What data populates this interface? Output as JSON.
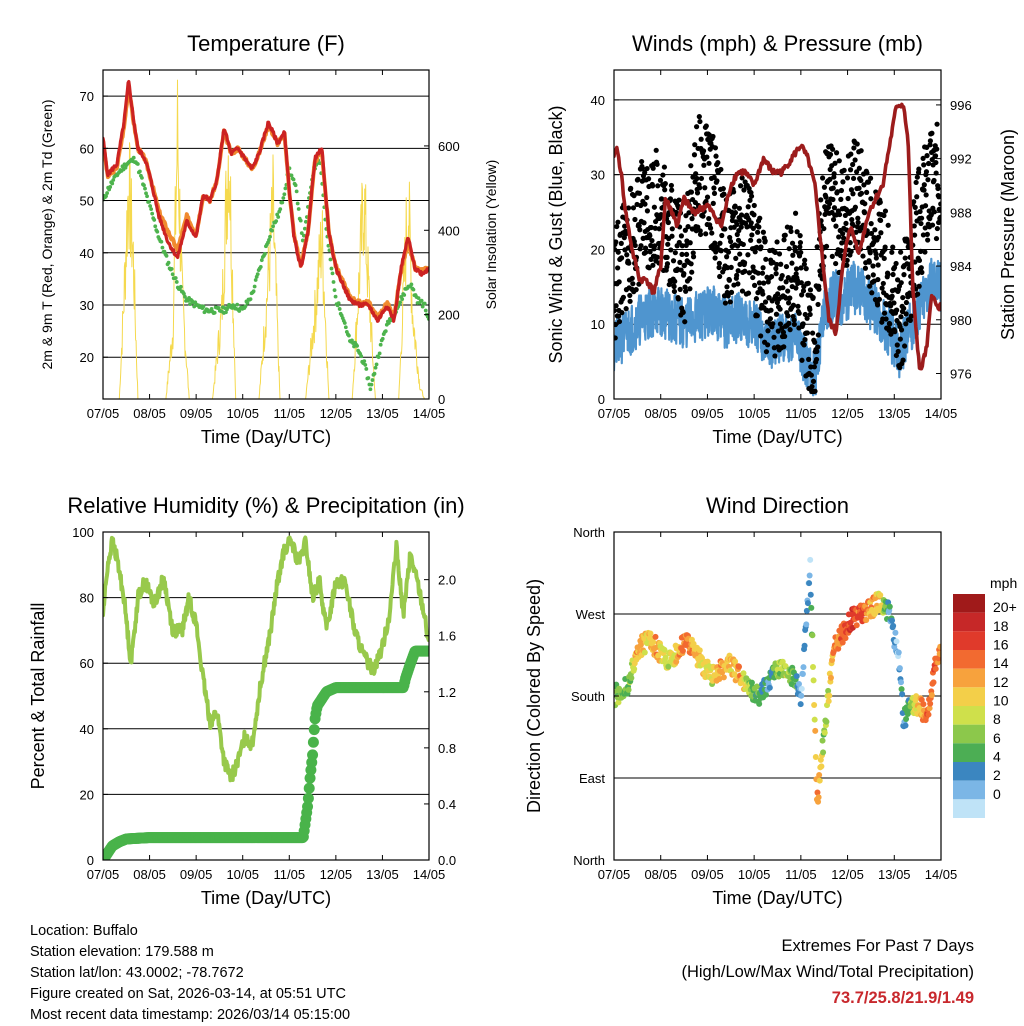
{
  "colors": {
    "temp_2m": "#cc2222",
    "temp_9m": "#f08a2e",
    "dewpoint": "#4db34d",
    "solar": "#f5d94e",
    "wind": "#4f95cf",
    "gust": "#000000",
    "pressure": "#9c1c1c",
    "rh": "#98c94c",
    "precip": "#49b34a",
    "extremes": "#c8282d"
  },
  "x_ticks": [
    "07/05",
    "08/05",
    "09/05",
    "10/05",
    "11/05",
    "12/05",
    "13/05",
    "14/05"
  ],
  "x_label": "Time (Day/UTC)",
  "chart_data": [
    {
      "id": "temperature",
      "type": "line",
      "title": "Temperature (F)",
      "xlabel": "Time (Day/UTC)",
      "ylabel": "2m & 9m T (Red, Orange) & 2m Td (Green)",
      "y2label": "Solar Insolation (Yellow)",
      "ylim": [
        12,
        75
      ],
      "y2lim": [
        0,
        780
      ],
      "yticks": [
        20,
        30,
        40,
        50,
        60,
        70
      ],
      "y2ticks": [
        0,
        200,
        400,
        600
      ],
      "series": [
        {
          "name": "2m T",
          "axis": "left",
          "x": [
            0,
            0.1,
            0.3,
            0.45,
            0.55,
            0.65,
            0.75,
            0.9,
            1.0,
            1.2,
            1.4,
            1.6,
            1.8,
            2.0,
            2.15,
            2.3,
            2.45,
            2.6,
            2.75,
            2.9,
            3.05,
            3.2,
            3.35,
            3.55,
            3.75,
            3.9,
            4.0,
            4.1,
            4.25,
            4.4,
            4.55,
            4.7,
            4.85,
            5.0,
            5.15,
            5.3,
            5.5,
            5.7,
            5.9,
            6.1,
            6.25,
            6.4,
            6.55,
            6.7,
            6.85,
            7.0
          ],
          "values": [
            62,
            55,
            57,
            65,
            73,
            66,
            60,
            58,
            55,
            47,
            42,
            39,
            46,
            43,
            51,
            50,
            54,
            64,
            59,
            60,
            58,
            56,
            59,
            65,
            61,
            63,
            52,
            43,
            37,
            44,
            58,
            60,
            44,
            37,
            34,
            31,
            30,
            30,
            27,
            30,
            27,
            37,
            43,
            37,
            36,
            37
          ]
        },
        {
          "name": "9m T",
          "axis": "left",
          "x": [
            0,
            0.1,
            0.3,
            0.45,
            0.55,
            0.65,
            0.75,
            0.9,
            1.0,
            1.2,
            1.4,
            1.6,
            1.8,
            2.0,
            2.15,
            2.3,
            2.45,
            2.6,
            2.75,
            2.9,
            3.05,
            3.2,
            3.35,
            3.55,
            3.75,
            3.9,
            4.0,
            4.1,
            4.25,
            4.4,
            4.55,
            4.7,
            4.85,
            5.0,
            5.15,
            5.3,
            5.5,
            5.7,
            5.9,
            6.1,
            6.25,
            6.4,
            6.55,
            6.7,
            6.85,
            7.0
          ],
          "values": [
            61.5,
            54.5,
            56.5,
            64,
            72,
            65.5,
            60,
            58,
            55,
            48,
            44,
            40.5,
            47,
            43.5,
            51,
            50,
            54,
            63.5,
            59,
            60,
            58,
            56,
            59,
            64.5,
            61,
            62.5,
            52,
            43.5,
            37.5,
            44,
            57.5,
            59.5,
            44,
            37.5,
            34.5,
            31.5,
            30.5,
            30.5,
            27.5,
            30.5,
            27.5,
            36.5,
            42,
            37,
            36.5,
            37
          ]
        },
        {
          "name": "2m Td",
          "axis": "left",
          "x": [
            0,
            0.1,
            0.3,
            0.5,
            0.7,
            0.9,
            1.0,
            1.2,
            1.4,
            1.6,
            1.8,
            2.0,
            2.2,
            2.4,
            2.6,
            2.8,
            3.0,
            3.2,
            3.4,
            3.6,
            3.8,
            4.0,
            4.15,
            4.3,
            4.5,
            4.65,
            4.8,
            5.0,
            5.15,
            5.3,
            5.45,
            5.6,
            5.75,
            5.9,
            6.05,
            6.2,
            6.35,
            6.5,
            6.6,
            6.75,
            6.9,
            7.0
          ],
          "values": [
            50,
            52,
            55,
            57,
            58,
            52,
            49,
            43,
            38,
            34,
            31,
            30,
            29,
            29,
            29,
            30,
            29,
            32,
            38,
            44,
            48,
            56,
            52,
            42,
            55,
            59,
            44,
            31,
            28,
            23,
            22,
            19,
            14,
            20,
            25,
            28,
            30,
            33,
            34,
            31,
            30,
            27
          ]
        },
        {
          "name": "Solar Insolation",
          "axis": "right",
          "x": [
            0,
            0.35,
            0.45,
            0.55,
            0.65,
            0.75,
            1.35,
            1.5,
            1.6,
            1.7,
            1.85,
            2.35,
            2.55,
            2.7,
            2.85,
            3.35,
            3.5,
            3.65,
            3.8,
            4.35,
            4.55,
            4.7,
            4.85,
            5.35,
            5.5,
            5.6,
            5.7,
            5.85,
            6.35,
            6.55,
            6.65,
            6.8,
            6.9,
            7.0
          ],
          "values": [
            0,
            0,
            300,
            640,
            420,
            0,
            0,
            200,
            780,
            300,
            0,
            0,
            250,
            760,
            0,
            0,
            260,
            560,
            0,
            0,
            250,
            480,
            0,
            0,
            350,
            600,
            330,
            0,
            0,
            600,
            250,
            40,
            0,
            0
          ]
        }
      ]
    },
    {
      "id": "winds",
      "type": "scatter",
      "title": "Winds (mph) & Pressure (mb)",
      "xlabel": "Time (Day/UTC)",
      "ylabel": "Sonic Wind & Gust (Blue, Black)",
      "y2label": "Station Pressure (Maroon)",
      "ylim": [
        0,
        44
      ],
      "y2lim": [
        974.1,
        998.6
      ],
      "yticks": [
        0,
        10,
        20,
        30,
        40
      ],
      "y2ticks": [
        976,
        980,
        984,
        988,
        992,
        996
      ],
      "series": [
        {
          "name": "Sonic Wind",
          "axis": "left",
          "x": [
            0,
            0.3,
            0.6,
            0.9,
            1.2,
            1.5,
            1.8,
            2.1,
            2.4,
            2.7,
            3.0,
            3.3,
            3.6,
            3.9,
            4.1,
            4.3,
            4.5,
            4.7,
            4.9,
            5.1,
            5.3,
            5.6,
            5.9,
            6.1,
            6.3,
            6.6,
            6.8,
            7.0
          ],
          "values": [
            7,
            9,
            11,
            12,
            11,
            10,
            11,
            12,
            10,
            11,
            10,
            7,
            8,
            9,
            5,
            3,
            12,
            14,
            13,
            15,
            14,
            12,
            9,
            6,
            9,
            13,
            16,
            15
          ]
        },
        {
          "name": "Gust",
          "axis": "left",
          "x": [
            0,
            0.3,
            0.6,
            0.9,
            1.2,
            1.5,
            1.8,
            2.1,
            2.4,
            2.7,
            3.0,
            3.3,
            3.6,
            3.9,
            4.1,
            4.3,
            4.5,
            4.7,
            4.9,
            5.1,
            5.3,
            5.6,
            5.9,
            6.1,
            6.3,
            6.6,
            6.8,
            7.0
          ],
          "values": [
            15,
            20,
            24,
            26,
            23,
            17,
            30,
            28,
            20,
            22,
            20,
            12,
            14,
            18,
            10,
            8,
            27,
            26,
            24,
            28,
            26,
            20,
            16,
            11,
            16,
            25,
            28,
            30
          ]
        },
        {
          "name": "Station Pressure",
          "axis": "right",
          "x": [
            0,
            0.05,
            0.15,
            0.25,
            0.4,
            0.55,
            0.7,
            0.85,
            1.0,
            1.1,
            1.25,
            1.35,
            1.5,
            1.7,
            2.0,
            2.3,
            2.5,
            2.65,
            2.8,
            3.0,
            3.2,
            3.4,
            3.6,
            3.8,
            4.0,
            4.15,
            4.3,
            4.45,
            4.6,
            4.75,
            4.9,
            5.05,
            5.25,
            5.45,
            5.6,
            5.75,
            5.9,
            6.05,
            6.2,
            6.3,
            6.4,
            6.55,
            6.7,
            6.8,
            6.9,
            7.0
          ],
          "values": [
            992,
            993,
            991,
            988,
            985,
            983,
            983,
            982,
            984,
            989,
            988,
            987,
            989,
            988,
            988.5,
            987,
            990,
            991,
            991,
            990,
            992,
            991,
            991,
            992,
            993,
            992,
            990,
            985,
            980,
            979,
            984,
            987,
            985,
            988,
            989,
            990,
            993,
            996,
            996,
            993,
            982,
            976,
            978,
            982,
            981,
            981
          ]
        }
      ]
    },
    {
      "id": "humidity",
      "type": "line",
      "title": "Relative Humidity (%) & Precipitation (in)",
      "xlabel": "Time (Day/UTC)",
      "ylabel": "Percent & Total Rainfall",
      "ylim": [
        0,
        100
      ],
      "y2lim": [
        0,
        2.34
      ],
      "yticks": [
        0,
        20,
        40,
        60,
        80,
        100
      ],
      "y2ticks": [
        0.0,
        0.4,
        0.8,
        1.2,
        1.6,
        2.0
      ],
      "y2ticklabels": [
        "0.0",
        "0.4",
        "0.8",
        "1.2",
        "1.6",
        "2.0"
      ],
      "series": [
        {
          "name": "Relative Humidity",
          "axis": "left",
          "x": [
            0,
            0.1,
            0.2,
            0.3,
            0.45,
            0.6,
            0.75,
            0.9,
            1.1,
            1.3,
            1.5,
            1.7,
            1.85,
            2.0,
            2.15,
            2.3,
            2.45,
            2.6,
            2.75,
            2.9,
            3.05,
            3.2,
            3.4,
            3.6,
            3.75,
            3.9,
            4.05,
            4.2,
            4.35,
            4.5,
            4.65,
            4.8,
            5.0,
            5.2,
            5.4,
            5.6,
            5.8,
            6.0,
            6.15,
            6.3,
            6.45,
            6.6,
            6.75,
            6.9,
            7.0
          ],
          "values": [
            75,
            90,
            97,
            92,
            80,
            60,
            80,
            85,
            78,
            86,
            70,
            70,
            80,
            72,
            55,
            42,
            45,
            30,
            25,
            30,
            38,
            35,
            55,
            70,
            85,
            95,
            97,
            90,
            97,
            80,
            85,
            70,
            85,
            85,
            70,
            62,
            58,
            65,
            75,
            95,
            75,
            93,
            85,
            75,
            65
          ]
        },
        {
          "name": "Total Precipitation",
          "axis": "right",
          "x": [
            0,
            0.1,
            0.2,
            0.35,
            0.5,
            1.0,
            2.0,
            3.0,
            4.0,
            4.3,
            4.4,
            4.45,
            4.5,
            4.55,
            4.6,
            4.7,
            4.8,
            5.0,
            5.5,
            6.0,
            6.45,
            6.5,
            6.6,
            6.7,
            7.0
          ],
          "values": [
            0,
            0.05,
            0.1,
            0.13,
            0.15,
            0.16,
            0.16,
            0.16,
            0.16,
            0.16,
            0.4,
            0.6,
            0.75,
            1.0,
            1.1,
            1.15,
            1.2,
            1.23,
            1.23,
            1.23,
            1.23,
            1.3,
            1.4,
            1.49,
            1.49
          ]
        }
      ]
    },
    {
      "id": "direction",
      "type": "scatter",
      "title": "Wind Direction",
      "xlabel": "Time (Day/UTC)",
      "ylabel": "Direction (Colored By Speed)",
      "ylim": [
        0,
        360
      ],
      "ytick_values": [
        0,
        90,
        180,
        270,
        360
      ],
      "yticks": [
        "North",
        "East",
        "South",
        "West",
        "North"
      ],
      "colorbar_title": "mph",
      "colorbar_labels": [
        "20+",
        "18",
        "16",
        "14",
        "12",
        "10",
        "8",
        "6",
        "4",
        "2",
        "0"
      ],
      "colorbar_colors": [
        "#a01a1a",
        "#c62828",
        "#e03a2b",
        "#f26a30",
        "#f7a23d",
        "#f3cf49",
        "#cfe04b",
        "#8cc84b",
        "#4cae54",
        "#3b86c0",
        "#7bb6e6",
        "#bfe3f7"
      ],
      "series": [
        {
          "name": "Direction",
          "x": [
            0,
            0.3,
            0.5,
            0.7,
            0.9,
            1.1,
            1.3,
            1.5,
            1.7,
            1.9,
            2.1,
            2.3,
            2.5,
            2.7,
            2.9,
            3.1,
            3.3,
            3.5,
            3.7,
            3.9,
            4.0,
            4.1,
            4.2,
            4.35,
            4.5,
            4.7,
            4.9,
            5.1,
            5.3,
            5.5,
            5.7,
            5.9,
            6.1,
            6.2,
            6.3,
            6.5,
            6.7,
            6.9,
            7.0
          ],
          "values": [
            180,
            190,
            230,
            240,
            235,
            220,
            225,
            240,
            230,
            215,
            200,
            210,
            215,
            200,
            190,
            180,
            195,
            210,
            205,
            200,
            180,
            250,
            320,
            60,
            140,
            230,
            250,
            265,
            270,
            275,
            285,
            270,
            220,
            150,
            170,
            170,
            160,
            220,
            235
          ],
          "speeds": [
            8,
            6,
            14,
            12,
            14,
            10,
            12,
            16,
            14,
            12,
            10,
            14,
            12,
            14,
            8,
            6,
            4,
            8,
            10,
            6,
            2,
            4,
            2,
            16,
            8,
            14,
            16,
            18,
            16,
            14,
            12,
            4,
            2,
            4,
            6,
            12,
            16,
            16,
            14
          ]
        }
      ]
    }
  ],
  "info": {
    "location": "Location: Buffalo",
    "elevation": "Station elevation: 179.588 m",
    "latlon": "Station lat/lon: 43.0002; -78.7672",
    "created": "Figure created on Sat, 2026-03-14, at 05:51 UTC",
    "recent": "Most recent data timestamp: 2026/03/14 05:15:00"
  },
  "extremes": {
    "title": "Extremes For Past 7 Days",
    "subtitle": "(High/Low/Max Wind/Total Precipitation)",
    "values": "73.7/25.8/21.9/1.49"
  }
}
